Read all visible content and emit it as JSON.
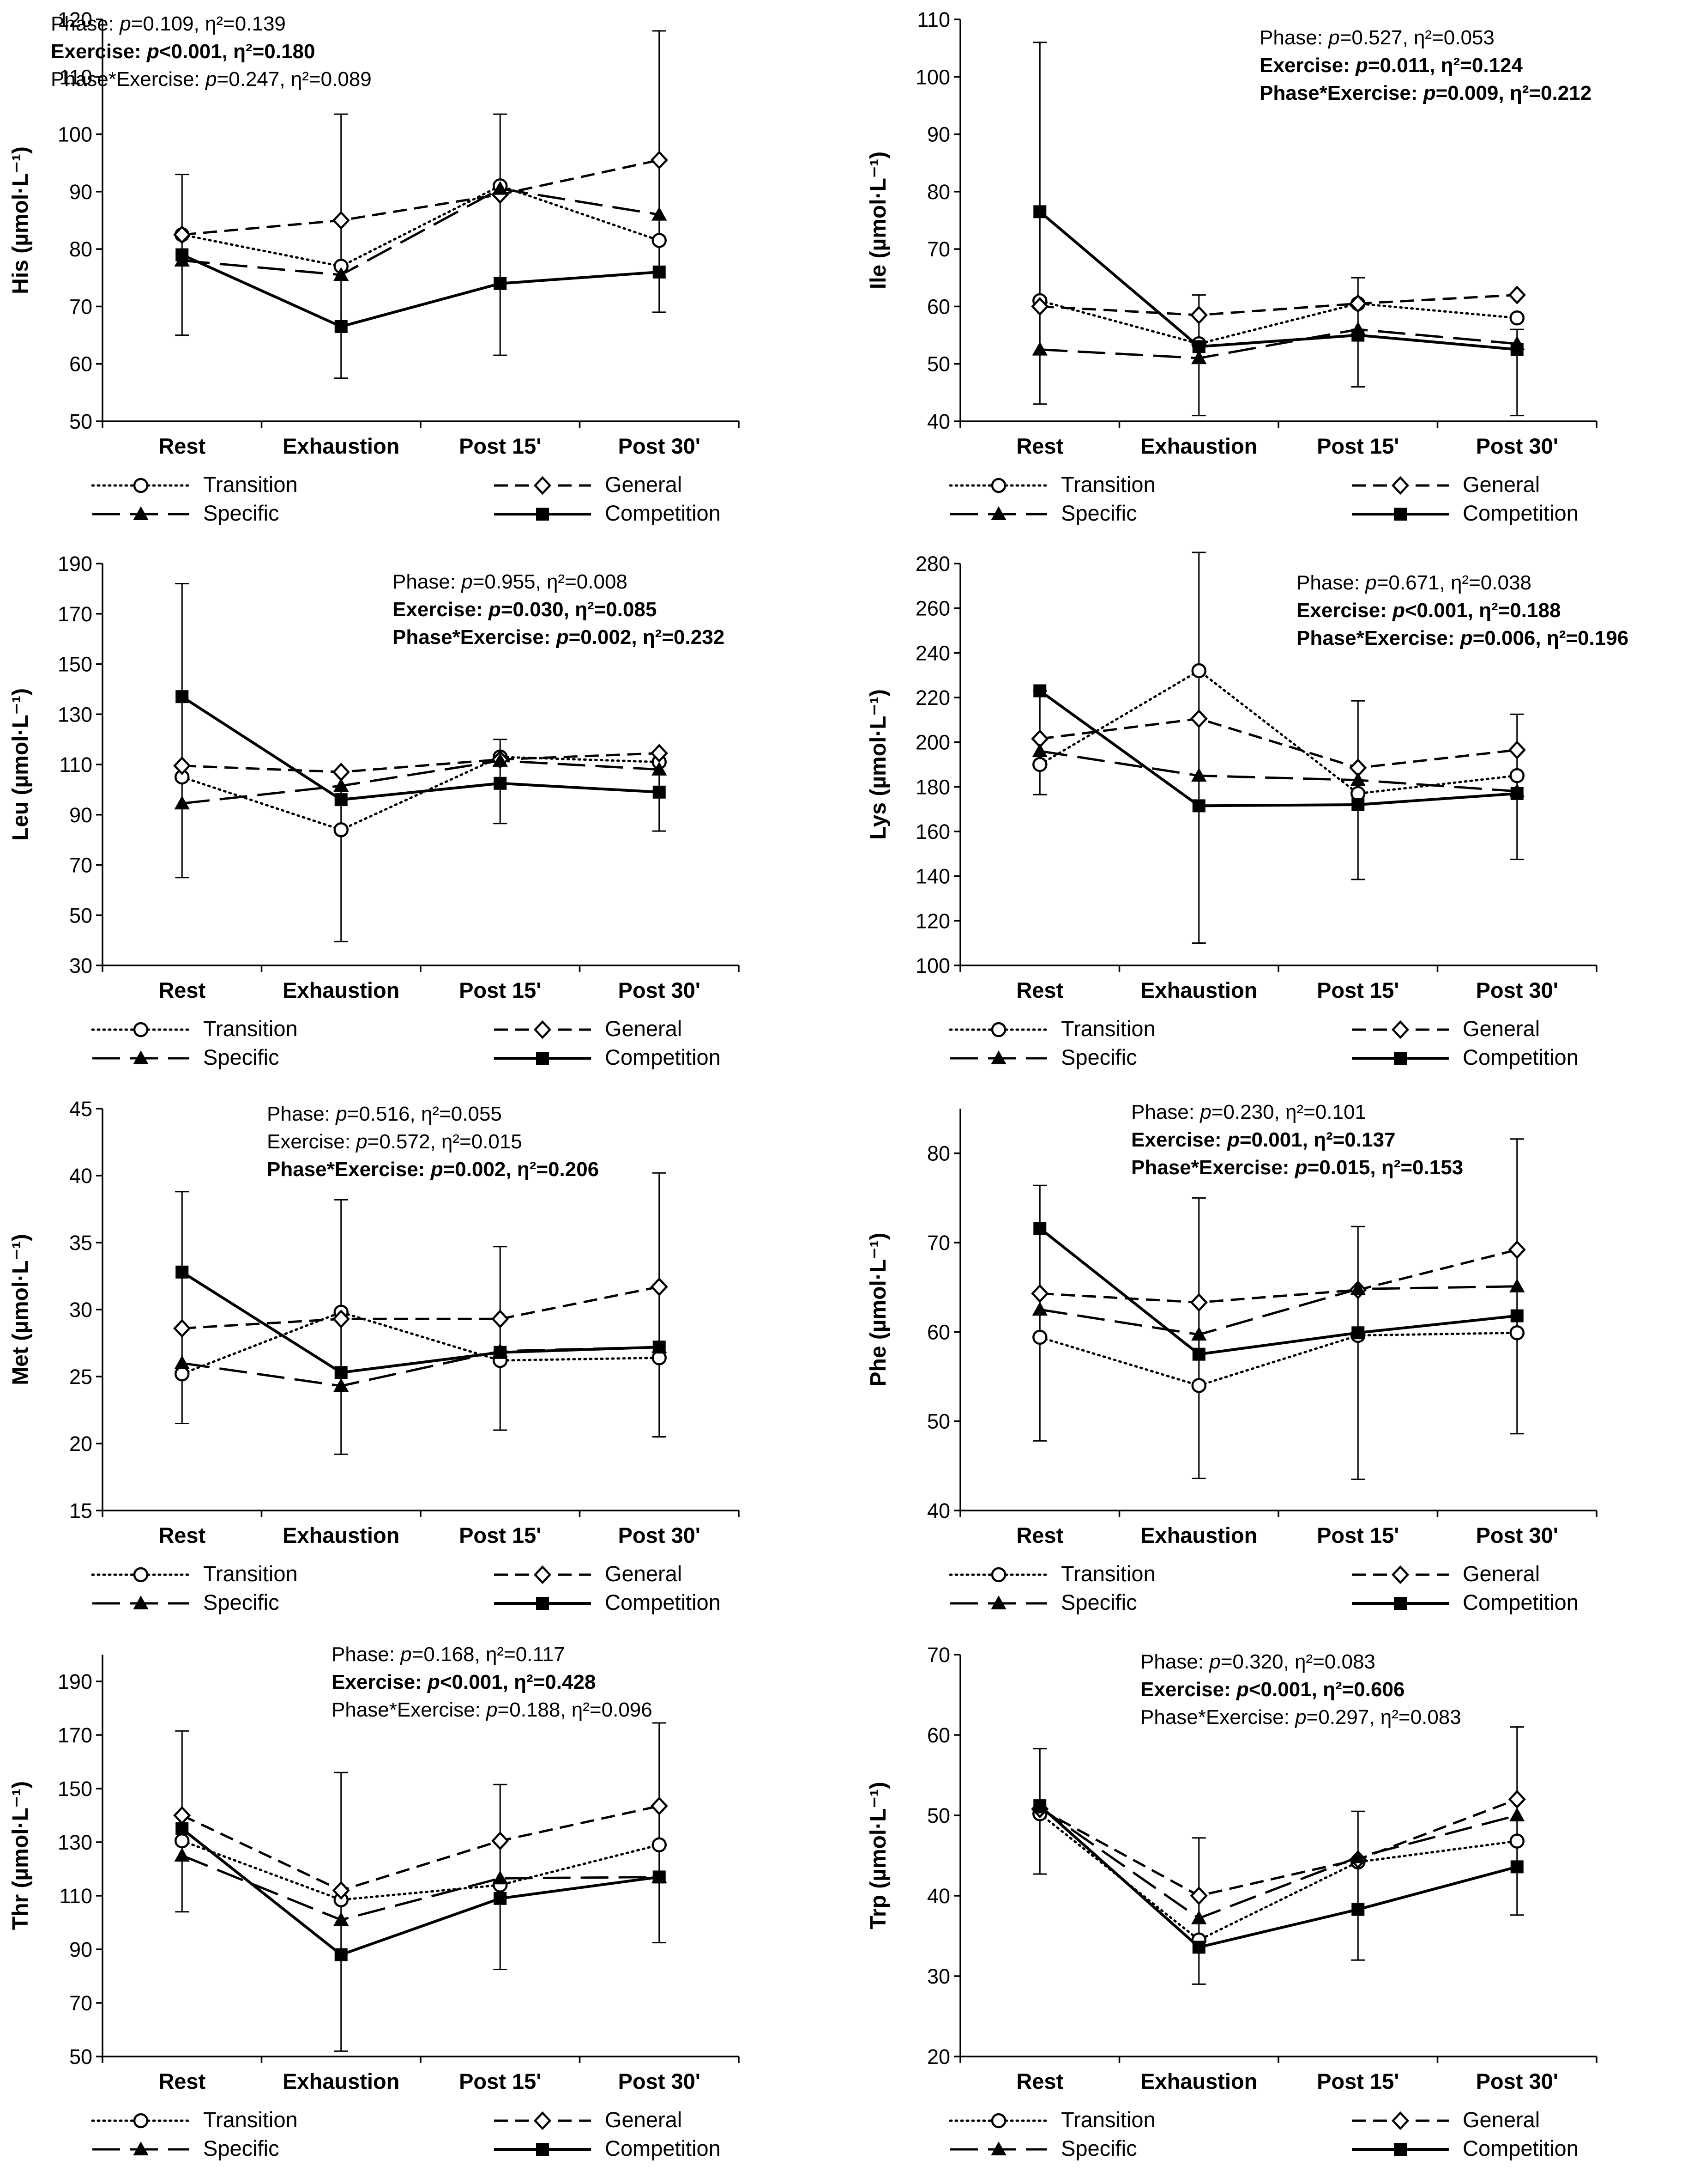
{
  "legend": [
    {
      "name": "Transition",
      "style": "dotted",
      "marker": "circle"
    },
    {
      "name": "General",
      "style": "dashed",
      "marker": "diamond"
    },
    {
      "name": "Specific",
      "style": "longdash",
      "marker": "triangle"
    },
    {
      "name": "Competition",
      "style": "solid",
      "marker": "square"
    }
  ],
  "categories": [
    "Rest",
    "Exhaustion",
    "Post 15'",
    "Post 30'"
  ],
  "chart_data": [
    {
      "type": "line",
      "ylabel": "His (µmol·L⁻¹)",
      "ylim": [
        50,
        120
      ],
      "yticks": [
        "50",
        "60",
        "70",
        "80",
        "90",
        "100",
        "110",
        "120"
      ],
      "stats": [
        {
          "pre": "Phase: ",
          "p": "p",
          "post": "=0.109, η²=0.139",
          "bold": false
        },
        {
          "pre": "Exercise: ",
          "p": "p",
          "post": "<0.001, η²=0.180",
          "bold": true
        },
        {
          "pre": "Phase*Exercise: ",
          "p": "p",
          "post": "=0.247, η²=0.089",
          "bold": false
        }
      ],
      "series": [
        {
          "name": "Transition",
          "values": [
            82.5,
            77,
            91,
            81.5
          ]
        },
        {
          "name": "General",
          "values": [
            82.5,
            85,
            89.5,
            95.5
          ]
        },
        {
          "name": "Specific",
          "values": [
            78,
            75.5,
            90.5,
            86
          ]
        },
        {
          "name": "Competition",
          "values": [
            79,
            66.5,
            74,
            76
          ],
          "errors": [
            [
              65,
              93
            ],
            [
              57.5,
              103.5
            ],
            [
              61.5,
              103.5
            ],
            [
              69,
              118
            ]
          ]
        }
      ]
    },
    {
      "type": "line",
      "ylabel": "Ile (µmol·L⁻¹)",
      "ylim": [
        40,
        110
      ],
      "yticks": [
        "40",
        "50",
        "60",
        "70",
        "80",
        "90",
        "100",
        "110"
      ],
      "stats": [
        {
          "pre": "Phase: ",
          "p": "p",
          "post": "=0.527, η²=0.053",
          "bold": false
        },
        {
          "pre": "Exercise: ",
          "p": "p",
          "post": "=0.011, η²=0.124",
          "bold": true
        },
        {
          "pre": "Phase*Exercise: ",
          "p": "p",
          "post": "=0.009, η²=0.212",
          "bold": true
        }
      ],
      "series": [
        {
          "name": "Transition",
          "values": [
            61,
            53.5,
            60.5,
            58
          ]
        },
        {
          "name": "General",
          "values": [
            60,
            58.5,
            60.5,
            62
          ]
        },
        {
          "name": "Specific",
          "values": [
            52.5,
            51,
            56,
            53.5
          ]
        },
        {
          "name": "Competition",
          "values": [
            76.5,
            53,
            55,
            52.5
          ],
          "errors": [
            [
              43,
              106
            ],
            [
              41,
              62
            ],
            [
              46,
              65
            ],
            [
              41,
              56
            ]
          ]
        }
      ]
    },
    {
      "type": "line",
      "ylabel": "Leu (µmol·L⁻¹)",
      "ylim": [
        30,
        190
      ],
      "yticks": [
        "30",
        "50",
        "70",
        "90",
        "110",
        "130",
        "150",
        "170",
        "190"
      ],
      "stats": [
        {
          "pre": "Phase: ",
          "p": "p",
          "post": "=0.955, η²=0.008",
          "bold": false
        },
        {
          "pre": "Exercise: ",
          "p": "p",
          "post": "=0.030, η²=0.085",
          "bold": true
        },
        {
          "pre": "Phase*Exercise: ",
          "p": "p",
          "post": "=0.002, η²=0.232",
          "bold": true
        }
      ],
      "series": [
        {
          "name": "Transition",
          "values": [
            105,
            84,
            113,
            111
          ]
        },
        {
          "name": "General",
          "values": [
            109.5,
            107,
            112,
            114.5
          ]
        },
        {
          "name": "Specific",
          "values": [
            94.5,
            101.5,
            111.5,
            108
          ]
        },
        {
          "name": "Competition",
          "values": [
            137,
            96,
            102.5,
            99
          ],
          "errors": [
            [
              65,
              182
            ],
            [
              39.5,
              107
            ],
            [
              86.5,
              120
            ],
            [
              83.5,
              114
            ]
          ]
        }
      ]
    },
    {
      "type": "line",
      "ylabel": "Lys (µmol·L⁻¹)",
      "ylim": [
        100,
        280
      ],
      "yticks": [
        "100",
        "120",
        "140",
        "160",
        "180",
        "200",
        "220",
        "240",
        "260",
        "280"
      ],
      "stats": [
        {
          "pre": "Phase: ",
          "p": "p",
          "post": "=0.671, η²=0.038",
          "bold": false
        },
        {
          "pre": "Exercise: ",
          "p": "p",
          "post": "<0.001, η²=0.188",
          "bold": true
        },
        {
          "pre": "Phase*Exercise: ",
          "p": "p",
          "post": "=0.006, η²=0.196",
          "bold": true
        }
      ],
      "series": [
        {
          "name": "Transition",
          "values": [
            190,
            232,
            177,
            185
          ]
        },
        {
          "name": "General",
          "values": [
            201.5,
            210.5,
            188.5,
            196.5
          ]
        },
        {
          "name": "Specific",
          "values": [
            196,
            185,
            183,
            178
          ]
        },
        {
          "name": "Competition",
          "values": [
            223,
            171.5,
            172,
            177
          ],
          "errors": [
            [
              176.5,
              223
            ],
            [
              110,
              285
            ],
            [
              138.5,
              218.5
            ],
            [
              147.5,
              212.5
            ]
          ]
        }
      ]
    },
    {
      "type": "line",
      "ylabel": "Met (µmol·L⁻¹)",
      "ylim": [
        15,
        45
      ],
      "yticks": [
        "15",
        "20",
        "25",
        "30",
        "35",
        "40",
        "45"
      ],
      "stats": [
        {
          "pre": "Phase: ",
          "p": "p",
          "post": "=0.516, η²=0.055",
          "bold": false
        },
        {
          "pre": "Exercise: ",
          "p": "p",
          "post": "=0.572, η²=0.015",
          "bold": false
        },
        {
          "pre": "Phase*Exercise: ",
          "p": "p",
          "post": "=0.002, η²=0.206",
          "bold": true
        }
      ],
      "series": [
        {
          "name": "Transition",
          "values": [
            25.2,
            29.8,
            26.2,
            26.4
          ]
        },
        {
          "name": "General",
          "values": [
            28.6,
            29.3,
            29.3,
            31.7
          ]
        },
        {
          "name": "Specific",
          "values": [
            26,
            24.3,
            26.9,
            27.2
          ]
        },
        {
          "name": "Competition",
          "values": [
            32.8,
            25.3,
            26.8,
            27.2
          ],
          "errors": [
            [
              21.5,
              38.8
            ],
            [
              19.2,
              38.2
            ],
            [
              21,
              34.7
            ],
            [
              20.5,
              40.2
            ]
          ]
        }
      ]
    },
    {
      "type": "line",
      "ylabel": "Phe (µmol·L⁻¹)",
      "ylim": [
        40,
        85
      ],
      "yticks": [
        "40",
        "50",
        "60",
        "70",
        "80"
      ],
      "stats": [
        {
          "pre": "Phase: ",
          "p": "p",
          "post": "=0.230, η²=0.101",
          "bold": false
        },
        {
          "pre": "Exercise: ",
          "p": "p",
          "post": "=0.001, η²=0.137",
          "bold": true
        },
        {
          "pre": "Phase*Exercise: ",
          "p": "p",
          "post": "=0.015, η²=0.153",
          "bold": true
        }
      ],
      "series": [
        {
          "name": "Transition",
          "values": [
            59.4,
            54,
            59.6,
            59.9
          ]
        },
        {
          "name": "General",
          "values": [
            64.3,
            63.3,
            64.7,
            69.2
          ]
        },
        {
          "name": "Specific",
          "values": [
            62.5,
            59.7,
            64.8,
            65.1
          ]
        },
        {
          "name": "Competition",
          "values": [
            71.6,
            57.5,
            59.9,
            61.8
          ],
          "errors": [
            [
              47.8,
              76.4
            ],
            [
              43.6,
              75
            ],
            [
              43.5,
              71.8
            ],
            [
              48.6,
              81.6
            ]
          ]
        }
      ]
    },
    {
      "type": "line",
      "ylabel": "Thr (µmol·L⁻¹)",
      "ylim": [
        50,
        200
      ],
      "yticks": [
        "50",
        "70",
        "90",
        "110",
        "130",
        "150",
        "170",
        "190"
      ],
      "stats": [
        {
          "pre": "Phase: ",
          "p": "p",
          "post": "=0.168, η²=0.117",
          "bold": false
        },
        {
          "pre": "Exercise: ",
          "p": "p",
          "post": "<0.001, η²=0.428",
          "bold": true
        },
        {
          "pre": "Phase*Exercise: ",
          "p": "p",
          "post": "=0.188, η²=0.096",
          "bold": false
        }
      ],
      "series": [
        {
          "name": "Transition",
          "values": [
            130.5,
            108.5,
            114,
            129
          ]
        },
        {
          "name": "General",
          "values": [
            140,
            112,
            130.5,
            143.5
          ]
        },
        {
          "name": "Specific",
          "values": [
            125,
            101,
            116.5,
            117
          ]
        },
        {
          "name": "Competition",
          "values": [
            135,
            88,
            109,
            117
          ],
          "errors": [
            [
              104,
              171.5
            ],
            [
              52,
              156
            ],
            [
              82.5,
              151.5
            ],
            [
              92.5,
              174.5
            ]
          ]
        }
      ]
    },
    {
      "type": "line",
      "ylabel": "Trp (µmol·L⁻¹)",
      "ylim": [
        20,
        70
      ],
      "yticks": [
        "20",
        "30",
        "40",
        "50",
        "60",
        "70"
      ],
      "stats": [
        {
          "pre": "Phase: ",
          "p": "p",
          "post": "=0.320, η²=0.083",
          "bold": false
        },
        {
          "pre": "Exercise: ",
          "p": "p",
          "post": "<0.001, η²=0.606",
          "bold": true
        },
        {
          "pre": "Phase*Exercise: ",
          "p": "p",
          "post": "=0.297, η²=0.083",
          "bold": false
        }
      ],
      "series": [
        {
          "name": "Transition",
          "values": [
            50.2,
            34.5,
            44.2,
            46.8
          ]
        },
        {
          "name": "General",
          "values": [
            50.8,
            40,
            44.5,
            52
          ]
        },
        {
          "name": "Specific",
          "values": [
            51,
            37.2,
            44.8,
            50
          ]
        },
        {
          "name": "Competition",
          "values": [
            51.2,
            33.6,
            38.3,
            43.6
          ],
          "errors": [
            [
              42.7,
              58.3
            ],
            [
              29,
              47.2
            ],
            [
              32,
              50.5
            ],
            [
              37.6,
              61
            ]
          ]
        }
      ]
    }
  ]
}
